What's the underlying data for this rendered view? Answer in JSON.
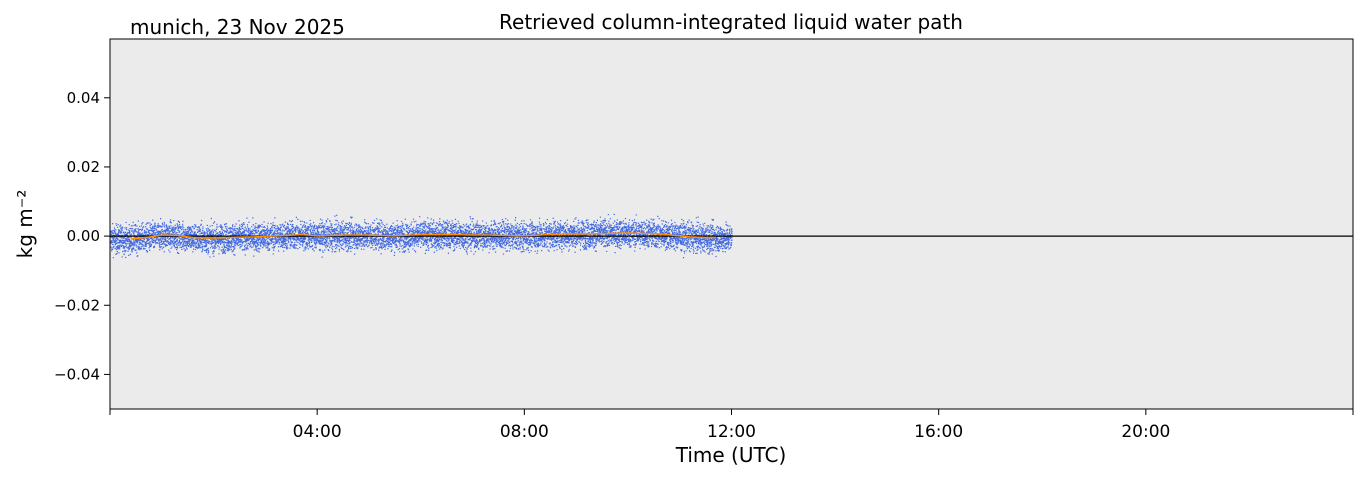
{
  "figure": {
    "location_label": "munich, 23 Nov 2025"
  },
  "chart_data": {
    "type": "scatter",
    "title": "Retrieved column-integrated liquid water path",
    "xlabel": "Time (UTC)",
    "ylabel": "kg m⁻²",
    "x_unit": "hours UTC",
    "xlim": [
      0,
      24
    ],
    "ylim": [
      -0.05,
      0.057
    ],
    "x_ticks": [
      {
        "hour": 0,
        "label": ""
      },
      {
        "hour": 4,
        "label": "04:00"
      },
      {
        "hour": 8,
        "label": "08:00"
      },
      {
        "hour": 12,
        "label": "12:00"
      },
      {
        "hour": 16,
        "label": "16:00"
      },
      {
        "hour": 20,
        "label": "20:00"
      },
      {
        "hour": 24,
        "label": ""
      }
    ],
    "y_ticks": [
      {
        "value": 0.04,
        "label": "0.04"
      },
      {
        "value": 0.02,
        "label": "0.02"
      },
      {
        "value": 0.0,
        "label": "0.00"
      },
      {
        "value": -0.02,
        "label": "−0.02"
      },
      {
        "value": -0.04,
        "label": "−0.04"
      }
    ],
    "zero_line": 0,
    "background_color": "#ebebeb",
    "series": [
      {
        "kind": "scatter",
        "color": "#4169e1",
        "x_range": [
          0,
          12
        ],
        "noise_amplitude": 0.004,
        "approx_y_extent": [
          -0.007,
          0.007
        ]
      },
      {
        "kind": "line",
        "color": "#ff8c00",
        "x": [
          0.4,
          0.7,
          1.0,
          1.3,
          1.6,
          1.9,
          2.2,
          2.5,
          2.8,
          3.1,
          3.4,
          3.7,
          4.0,
          4.3,
          4.6,
          4.9,
          5.2,
          5.5,
          5.8,
          6.1,
          6.4,
          6.7,
          7.0,
          7.3,
          7.6,
          7.9,
          8.2,
          8.5,
          8.8,
          9.1,
          9.4,
          9.7,
          10.0,
          10.3,
          10.6,
          10.9,
          11.2,
          11.5,
          11.7
        ],
        "y": [
          -0.0008,
          -0.0004,
          0.0003,
          0.0002,
          -0.0004,
          -0.0006,
          -0.0005,
          -0.0003,
          -0.0002,
          0.0,
          0.0002,
          0.0004,
          0.0001,
          0.0002,
          0.0003,
          0.0003,
          0.0002,
          0.0001,
          0.0003,
          0.0004,
          0.0005,
          0.0004,
          0.0003,
          0.0003,
          0.0002,
          0.0001,
          0.0002,
          0.0005,
          0.0006,
          0.0006,
          0.0007,
          0.0008,
          0.0009,
          0.0008,
          0.0006,
          0.0002,
          -0.0002,
          -0.0004,
          -0.0004
        ]
      }
    ]
  }
}
